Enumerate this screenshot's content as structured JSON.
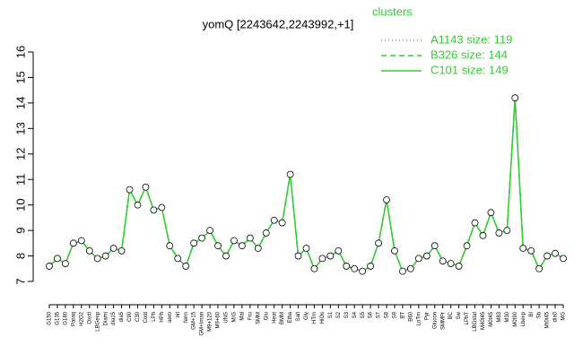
{
  "chart_data": {
    "type": "line",
    "title": "yomQ [2243642,2243992,+1]",
    "legend_title": "clusters",
    "legend_position": "top-right",
    "categories": [
      "G150",
      "G135",
      "G180",
      "Paraq",
      "H2O2",
      "Oxctl",
      "LBGexp",
      "Diami",
      "dia15",
      "dia5",
      "C90",
      "C30",
      "Cold",
      "LPh",
      "HPh",
      "aero",
      "nit",
      "ferm",
      "GM+15",
      "GM+Iman",
      "M9+120",
      "M9+60",
      "UNS",
      "M/G",
      "Mal",
      "Fru",
      "SMM",
      "Glu",
      "Heat",
      "BMM",
      "Etha",
      "Salt",
      "Gly",
      "HTm",
      "HiOs",
      "S1",
      "S2",
      "S3",
      "S4",
      "S5",
      "S6",
      "S7",
      "S8",
      "S9",
      "BT",
      "B60",
      "LoTm",
      "Pyr",
      "Glucon",
      "SMMPr",
      "BC",
      "Sw",
      "LPhT",
      "LBGstat",
      "M40t45",
      "M0t45",
      "M83",
      "M30",
      "M0t90",
      "Lbexp",
      "BI",
      "Sb",
      "Mt0t45",
      "dia0",
      "MG"
    ],
    "series": [
      {
        "name": "A1143 size: 119",
        "color": "#33cc33",
        "style": "dotted",
        "values": [
          7.6,
          7.9,
          7.7,
          8.5,
          8.6,
          8.2,
          7.9,
          8.0,
          8.3,
          8.2,
          10.6,
          10.0,
          10.7,
          9.8,
          9.9,
          8.4,
          7.9,
          7.6,
          8.5,
          8.7,
          9.0,
          8.4,
          8.0,
          8.6,
          8.4,
          8.7,
          8.3,
          8.9,
          9.4,
          9.3,
          11.2,
          8.0,
          8.3,
          7.5,
          7.9,
          8.0,
          8.2,
          7.6,
          7.5,
          7.4,
          7.6,
          8.5,
          10.2,
          8.2,
          7.4,
          7.5,
          7.9,
          8.0,
          8.4,
          7.8,
          7.7,
          7.6,
          8.4,
          9.3,
          8.8,
          9.7,
          8.9,
          9.0,
          14.2,
          8.3,
          8.2,
          7.5,
          8.0,
          8.1,
          7.9
        ]
      },
      {
        "name": "B326 size: 144",
        "color": "#33cc33",
        "style": "dashed",
        "values": [
          7.6,
          7.9,
          7.7,
          8.5,
          8.6,
          8.2,
          7.9,
          8.0,
          8.3,
          8.2,
          10.6,
          10.0,
          10.7,
          9.8,
          9.9,
          8.4,
          7.9,
          7.6,
          8.5,
          8.7,
          9.0,
          8.4,
          8.0,
          8.6,
          8.4,
          8.7,
          8.3,
          8.9,
          9.4,
          9.3,
          11.2,
          8.0,
          8.3,
          7.5,
          7.9,
          8.0,
          8.2,
          7.6,
          7.5,
          7.4,
          7.6,
          8.5,
          10.2,
          8.2,
          7.4,
          7.5,
          7.9,
          8.0,
          8.4,
          7.8,
          7.7,
          7.6,
          8.4,
          9.3,
          8.8,
          9.7,
          8.9,
          9.0,
          14.2,
          8.3,
          8.2,
          7.5,
          8.0,
          8.1,
          7.9
        ]
      },
      {
        "name": "C101 size: 149",
        "color": "#33cc33",
        "style": "solid",
        "values": [
          7.6,
          7.9,
          7.7,
          8.5,
          8.6,
          8.2,
          7.9,
          8.0,
          8.3,
          8.2,
          10.6,
          10.0,
          10.7,
          9.8,
          9.9,
          8.4,
          7.9,
          7.6,
          8.5,
          8.7,
          9.0,
          8.4,
          8.0,
          8.6,
          8.4,
          8.7,
          8.3,
          8.9,
          9.4,
          9.3,
          11.2,
          8.0,
          8.3,
          7.5,
          7.9,
          8.0,
          8.2,
          7.6,
          7.5,
          7.4,
          7.6,
          8.5,
          10.2,
          8.2,
          7.4,
          7.5,
          7.9,
          8.0,
          8.4,
          7.8,
          7.7,
          7.6,
          8.4,
          9.3,
          8.8,
          9.7,
          8.9,
          9.0,
          14.2,
          8.3,
          8.2,
          7.5,
          8.0,
          8.1,
          7.9
        ]
      }
    ],
    "ylim": [
      7,
      16
    ],
    "yticks": [
      7,
      8,
      9,
      10,
      11,
      12,
      13,
      14,
      15,
      16
    ]
  }
}
